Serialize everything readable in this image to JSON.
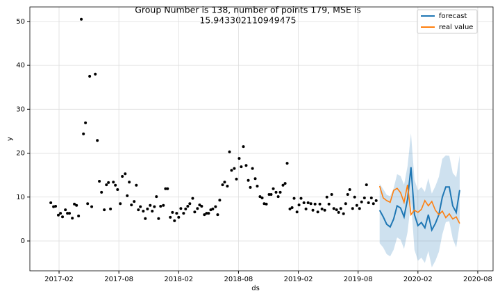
{
  "chart_data": {
    "type": "line",
    "title_lines": [
      "Group Number is 138, number of points 179, MSE is",
      "15.943302110949475"
    ],
    "x_label": "ds",
    "y_label": "y",
    "xlim": [
      2016.839,
      2020.711
    ],
    "ylim": [
      -6.8,
      53.3
    ],
    "xticks": [
      {
        "value": 2017.083,
        "label": "2017-02"
      },
      {
        "value": 2017.583,
        "label": "2017-08"
      },
      {
        "value": 2018.083,
        "label": "2018-02"
      },
      {
        "value": 2018.583,
        "label": "2018-08"
      },
      {
        "value": 2019.083,
        "label": "2019-02"
      },
      {
        "value": 2019.583,
        "label": "2019-08"
      },
      {
        "value": 2020.083,
        "label": "2020-02"
      },
      {
        "value": 2020.583,
        "label": "2020-08"
      }
    ],
    "yticks": [
      0,
      10,
      20,
      30,
      40,
      50
    ],
    "grid": true,
    "legend": "upper right",
    "observed": {
      "color": "#000000",
      "x": [
        2017.014,
        2017.037,
        2017.054,
        2017.077,
        2017.095,
        2017.112,
        2017.136,
        2017.153,
        2017.17,
        2017.194,
        2017.211,
        2017.229,
        2017.246,
        2017.269,
        2017.287,
        2017.304,
        2017.322,
        2017.339,
        2017.356,
        2017.386,
        2017.403,
        2017.42,
        2017.438,
        2017.461,
        2017.479,
        2017.496,
        2017.513,
        2017.537,
        2017.554,
        2017.572,
        2017.595,
        2017.612,
        2017.636,
        2017.653,
        2017.67,
        2017.688,
        2017.711,
        2017.729,
        2017.746,
        2017.763,
        2017.787,
        2017.804,
        2017.822,
        2017.845,
        2017.862,
        2017.88,
        2017.897,
        2017.915,
        2017.932,
        2017.955,
        2017.973,
        2017.99,
        2018.013,
        2018.031,
        2018.048,
        2018.066,
        2018.083,
        2018.101,
        2018.124,
        2018.141,
        2018.159,
        2018.176,
        2018.2,
        2018.217,
        2018.24,
        2018.258,
        2018.275,
        2018.298,
        2018.316,
        2018.333,
        2018.351,
        2018.368,
        2018.391,
        2018.409,
        2018.426,
        2018.45,
        2018.467,
        2018.49,
        2018.508,
        2018.525,
        2018.548,
        2018.566,
        2018.589,
        2018.606,
        2018.624,
        2018.647,
        2018.665,
        2018.682,
        2018.7,
        2018.723,
        2018.74,
        2018.763,
        2018.781,
        2018.798,
        2018.816,
        2018.839,
        2018.856,
        2018.874,
        2018.897,
        2018.915,
        2018.932,
        2018.955,
        2018.973,
        2018.99,
        2019.013,
        2019.031,
        2019.048,
        2019.072,
        2019.089,
        2019.106,
        2019.13,
        2019.147,
        2019.165,
        2019.188,
        2019.205,
        2019.223,
        2019.246,
        2019.263,
        2019.281,
        2019.304,
        2019.322,
        2019.339,
        2019.362,
        2019.38,
        2019.403,
        2019.42,
        2019.438,
        2019.461,
        2019.479,
        2019.496,
        2019.513,
        2019.537,
        2019.554,
        2019.572,
        2019.595,
        2019.612,
        2019.636,
        2019.653,
        2019.67,
        2019.694,
        2019.711,
        2019.734
      ],
      "values": [
        8.7,
        7.8,
        7.9,
        5.9,
        6.3,
        5.5,
        7.1,
        6.3,
        6.3,
        5.2,
        8.4,
        8.1,
        5.7,
        50.5,
        24.4,
        26.9,
        8.5,
        37.5,
        7.8,
        38,
        22.9,
        13.6,
        11.1,
        7.1,
        12.8,
        13.3,
        7.3,
        13.4,
        12.7,
        11.7,
        8.5,
        14.7,
        15.3,
        10.3,
        13.4,
        8.2,
        9,
        12.7,
        7.1,
        7.8,
        6.8,
        5.1,
        7.3,
        8.1,
        6.8,
        7.8,
        10.1,
        5.1,
        7.9,
        8.1,
        11.9,
        11.9,
        5.4,
        6.5,
        4.6,
        6.3,
        5.4,
        7.4,
        6.3,
        7.3,
        7.9,
        8.5,
        9.7,
        6.6,
        7.4,
        8.2,
        7.9,
        6,
        6.3,
        6.3,
        7.1,
        7.3,
        7.8,
        6,
        9.3,
        12.8,
        13.4,
        12.5,
        20.3,
        16.1,
        16.5,
        14.1,
        18.8,
        16.9,
        21.5,
        17.2,
        13.8,
        12.2,
        16.5,
        14.2,
        12.5,
        10.1,
        9.8,
        8.5,
        8.4,
        10.6,
        10.6,
        11.9,
        11.1,
        10.1,
        11.1,
        12.7,
        13.1,
        17.7,
        7.3,
        7.6,
        9.7,
        6.6,
        8.2,
        9.7,
        8.7,
        7.3,
        8.7,
        8.5,
        7,
        8.4,
        6.6,
        8.4,
        7.3,
        7,
        10,
        8.4,
        10.6,
        7.4,
        7.1,
        6.5,
        7.4,
        6.2,
        8.5,
        10.6,
        11.7,
        7.4,
        10,
        8.1,
        7.4,
        8.9,
        9.8,
        12.8,
        8.7,
        9.8,
        8.5,
        9.2
      ]
    },
    "x": [
      2019.763,
      2019.793,
      2019.822,
      2019.851,
      2019.88,
      2019.909,
      2019.938,
      2019.967,
      2019.996,
      2020.025,
      2020.054,
      2020.083,
      2020.112,
      2020.141,
      2020.17,
      2020.199,
      2020.229,
      2020.258,
      2020.287,
      2020.316,
      2020.345,
      2020.374,
      2020.403,
      2020.432
    ],
    "series": [
      {
        "name": "forecast",
        "color": "#1f77b4",
        "values": [
          7.0,
          5.5,
          3.8,
          3.2,
          5.0,
          8.0,
          7.5,
          5.5,
          9.5,
          16.8,
          6.0,
          3.5,
          4.2,
          3.0,
          6.0,
          2.5,
          4.0,
          6.0,
          10.0,
          12.3,
          12.3,
          8.0,
          6.5,
          11.6
        ],
        "upper": [
          13.0,
          11.8,
          10.5,
          10.2,
          12.0,
          15.2,
          14.8,
          12.8,
          17.0,
          24.5,
          14.0,
          11.5,
          12.3,
          11.2,
          14.3,
          10.8,
          12.5,
          14.6,
          18.7,
          19.5,
          19.4,
          15.5,
          14.5,
          19.5
        ],
        "lower": [
          -0.5,
          -1.5,
          -3.0,
          -3.5,
          -2.0,
          0.8,
          0.3,
          -1.8,
          2.0,
          9.0,
          -2.0,
          -4.5,
          -3.8,
          -5.0,
          -2.3,
          -6.0,
          -4.5,
          -2.5,
          1.5,
          4.3,
          4.5,
          0.5,
          -1.5,
          3.8
        ]
      },
      {
        "name": "real value",
        "color": "#ff7f0e",
        "values": [
          12.5,
          9.8,
          9.2,
          8.8,
          11.5,
          12.0,
          11.0,
          8.8,
          12.8,
          6.0,
          7.0,
          6.5,
          7.2,
          9.2,
          8.0,
          9.0,
          7.0,
          6.0,
          6.8,
          5.3,
          6.2,
          5.0,
          5.5,
          4.0
        ]
      }
    ],
    "band_color": "#1f77b4"
  }
}
